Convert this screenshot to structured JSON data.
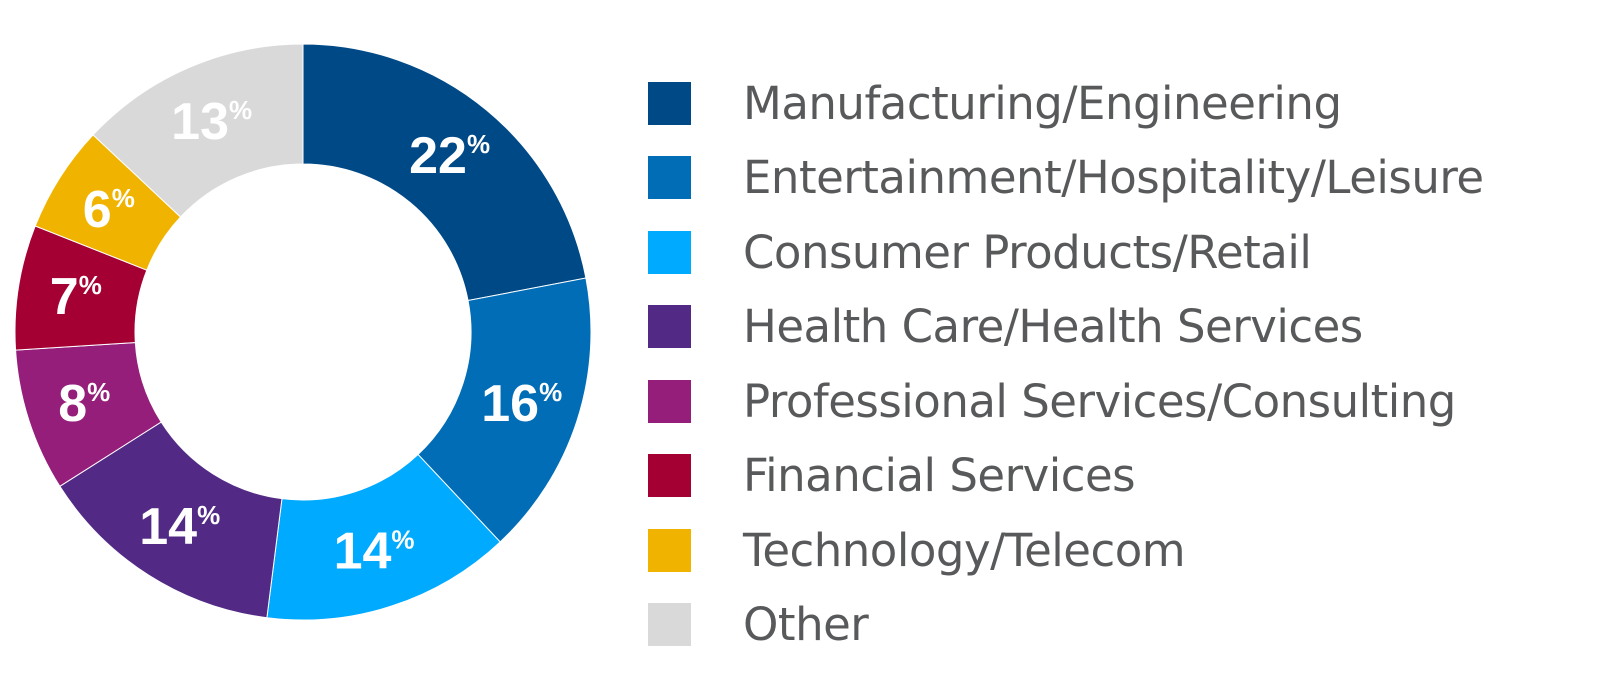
{
  "chart_data": {
    "type": "pie",
    "donut": true,
    "slices": [
      {
        "label": "Manufacturing/Engineering",
        "value": 22,
        "value_label": "22",
        "unit": "%",
        "color": "#004987"
      },
      {
        "label": "Entertainment/Hospitality/Leisure",
        "value": 16,
        "value_label": "16",
        "unit": "%",
        "color": "#006db6"
      },
      {
        "label": "Consumer Products/Retail",
        "value": 14,
        "value_label": "14",
        "unit": "%",
        "color": "#00aaff"
      },
      {
        "label": "Health Care/Health Services",
        "value": 14,
        "value_label": "14",
        "unit": "%",
        "color": "#522a85"
      },
      {
        "label": "Professional Services/Consulting",
        "value": 8,
        "value_label": "8",
        "unit": "%",
        "color": "#951e7b"
      },
      {
        "label": "Financial Services",
        "value": 7,
        "value_label": "7",
        "unit": "%",
        "color": "#a50034"
      },
      {
        "label": "Technology/Telecom",
        "value": 6,
        "value_label": "6",
        "unit": "%",
        "color": "#f0b400"
      },
      {
        "label": "Other",
        "value": 13,
        "value_label": "13",
        "unit": "%",
        "color": "#d9d9d9"
      }
    ],
    "legend_placement": "right",
    "title": "",
    "text_color": "#58595b"
  }
}
